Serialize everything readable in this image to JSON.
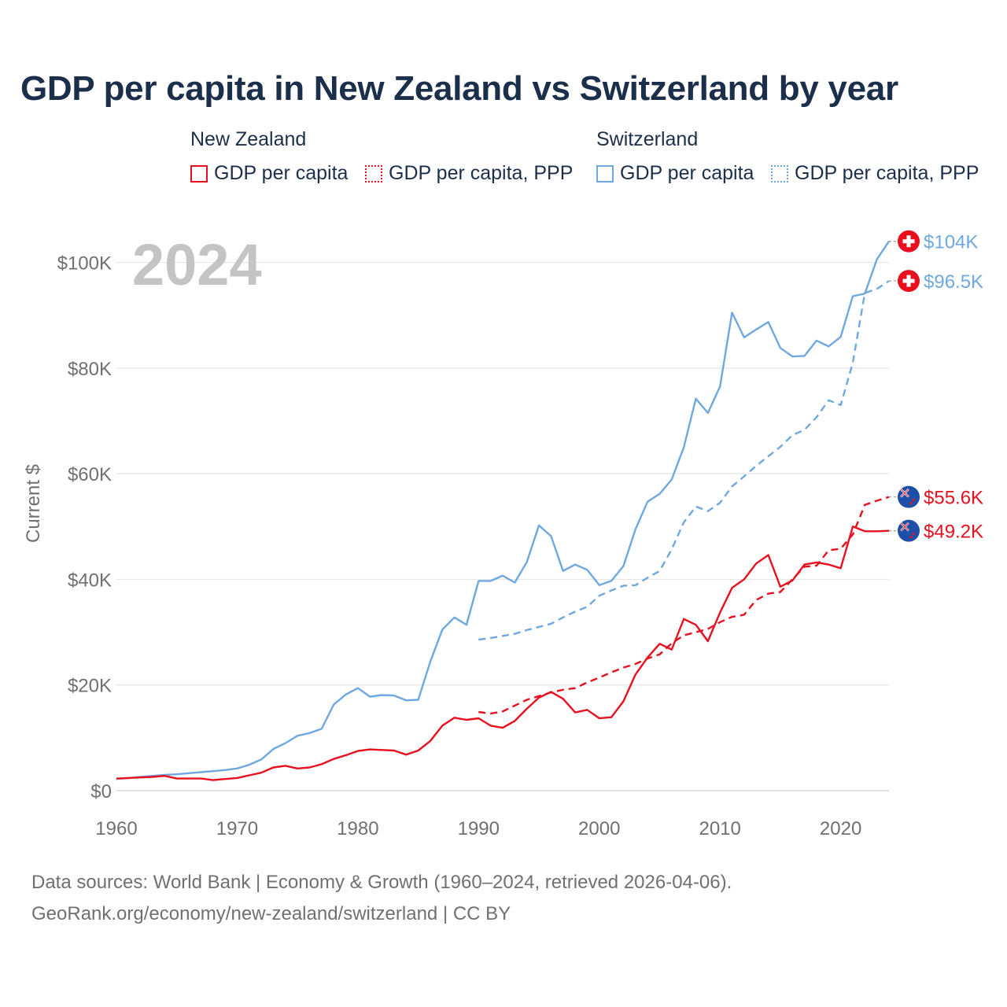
{
  "title": "GDP per capita in New Zealand vs Switzerland by year",
  "legend": {
    "groups": [
      {
        "name": "New Zealand",
        "color": "#e8101e",
        "items": [
          "GDP per capita",
          "GDP per capita, PPP"
        ]
      },
      {
        "name": "Switzerland",
        "color": "#6fa8e0",
        "items": [
          "GDP per capita",
          "GDP per capita, PPP"
        ]
      }
    ]
  },
  "year_watermark": "2024",
  "footer": {
    "line1": "Data sources: World Bank | Economy & Growth (1960–2024, retrieved 2026-04-06).",
    "line2": "GeoRank.org/economy/new-zealand/switzerland | CC BY"
  },
  "chart_data": {
    "type": "line",
    "title": "GDP per capita in New Zealand vs Switzerland by year",
    "xlabel": "",
    "ylabel": "Current $",
    "xlim": [
      1960,
      2024
    ],
    "ylim": [
      0,
      105000
    ],
    "x_ticks": [
      1960,
      1970,
      1980,
      1990,
      2000,
      2010,
      2020
    ],
    "y_ticks": [
      0,
      20000,
      40000,
      60000,
      80000,
      100000
    ],
    "y_tick_labels": [
      "$0",
      "$20K",
      "$40K",
      "$60K",
      "$80K",
      "$100K"
    ],
    "grid": true,
    "series": [
      {
        "name": "Switzerland GDP per capita",
        "color": "#6fa8e0",
        "dash": false,
        "end_label": "$104K",
        "x": [
          1960,
          1961,
          1962,
          1963,
          1964,
          1965,
          1966,
          1967,
          1968,
          1969,
          1970,
          1971,
          1972,
          1973,
          1974,
          1975,
          1976,
          1977,
          1978,
          1979,
          1980,
          1981,
          1982,
          1983,
          1984,
          1985,
          1986,
          1987,
          1988,
          1989,
          1990,
          1991,
          1992,
          1993,
          1994,
          1995,
          1996,
          1997,
          1998,
          1999,
          2000,
          2001,
          2002,
          2003,
          2004,
          2005,
          2006,
          2007,
          2008,
          2009,
          2010,
          2011,
          2012,
          2013,
          2014,
          2015,
          2016,
          2017,
          2018,
          2019,
          2020,
          2021,
          2022,
          2023,
          2024
        ],
        "values": [
          2200,
          2400,
          2600,
          2800,
          3000,
          3100,
          3300,
          3500,
          3700,
          3900,
          4200,
          4900,
          5900,
          7900,
          9000,
          10400,
          10900,
          11700,
          16300,
          18200,
          19400,
          17800,
          18100,
          18000,
          17100,
          17200,
          24400,
          30500,
          32800,
          31400,
          39700,
          39700,
          40700,
          39400,
          43300,
          50200,
          48200,
          41600,
          42800,
          41800,
          38900,
          39700,
          42500,
          49500,
          54700,
          56200,
          58900,
          65000,
          74200,
          71500,
          76500,
          90500,
          85800,
          87300,
          88700,
          83800,
          82200,
          82300,
          85200,
          84100,
          85900,
          93600,
          94100,
          100600,
          104000
        ]
      },
      {
        "name": "Switzerland GDP per capita, PPP",
        "color": "#6fa8e0",
        "dash": true,
        "end_label": "$96.5K",
        "x": [
          1990,
          1991,
          1992,
          1993,
          1994,
          1995,
          1996,
          1997,
          1998,
          1999,
          2000,
          2001,
          2002,
          2003,
          2004,
          2005,
          2006,
          2007,
          2008,
          2009,
          2010,
          2011,
          2012,
          2013,
          2014,
          2015,
          2016,
          2017,
          2018,
          2019,
          2020,
          2021,
          2022,
          2023,
          2024
        ],
        "values": [
          28600,
          28900,
          29300,
          29700,
          30400,
          31000,
          31600,
          32800,
          33900,
          34800,
          36900,
          37900,
          38800,
          38900,
          40300,
          41600,
          45700,
          50800,
          53800,
          52900,
          54500,
          57600,
          59500,
          61500,
          63300,
          65100,
          67300,
          68300,
          70700,
          73900,
          73000,
          81000,
          94200,
          95000,
          96500
        ]
      },
      {
        "name": "New Zealand GDP per capita",
        "color": "#e8101e",
        "dash": false,
        "end_label": "$49.2K",
        "x": [
          1960,
          1961,
          1962,
          1963,
          1964,
          1965,
          1966,
          1967,
          1968,
          1969,
          1970,
          1971,
          1972,
          1973,
          1974,
          1975,
          1976,
          1977,
          1978,
          1979,
          1980,
          1981,
          1982,
          1983,
          1984,
          1985,
          1986,
          1987,
          1988,
          1989,
          1990,
          1991,
          1992,
          1993,
          1994,
          1995,
          1996,
          1997,
          1998,
          1999,
          2000,
          2001,
          2002,
          2003,
          2004,
          2005,
          2006,
          2007,
          2008,
          2009,
          2010,
          2011,
          2012,
          2013,
          2014,
          2015,
          2016,
          2017,
          2018,
          2019,
          2020,
          2021,
          2022,
          2023,
          2024
        ],
        "values": [
          2300,
          2400,
          2500,
          2600,
          2800,
          2300,
          2300,
          2300,
          2000,
          2200,
          2400,
          2900,
          3400,
          4400,
          4700,
          4200,
          4400,
          5000,
          6000,
          6700,
          7500,
          7800,
          7700,
          7600,
          6800,
          7600,
          9400,
          12300,
          13800,
          13400,
          13700,
          12300,
          11900,
          13200,
          15500,
          17600,
          18700,
          17400,
          14800,
          15300,
          13700,
          13900,
          16900,
          22000,
          25200,
          27800,
          26700,
          32500,
          31400,
          28300,
          33700,
          38400,
          40000,
          43000,
          44600,
          38600,
          39800,
          42800,
          43200,
          42800,
          42100,
          50000,
          49100,
          49100,
          49200
        ]
      },
      {
        "name": "New Zealand GDP per capita, PPP",
        "color": "#e8101e",
        "dash": true,
        "end_label": "$55.6K",
        "x": [
          1990,
          1991,
          1992,
          1993,
          1994,
          1995,
          1996,
          1997,
          1998,
          1999,
          2000,
          2001,
          2002,
          2003,
          2004,
          2005,
          2006,
          2007,
          2008,
          2009,
          2010,
          2011,
          2012,
          2013,
          2014,
          2015,
          2016,
          2017,
          2018,
          2019,
          2020,
          2021,
          2022,
          2023,
          2024
        ],
        "values": [
          14900,
          14600,
          15000,
          16100,
          17200,
          17900,
          18600,
          19100,
          19400,
          20500,
          21400,
          22400,
          23300,
          24000,
          25000,
          25800,
          27900,
          29400,
          30000,
          30600,
          31900,
          32900,
          33300,
          36100,
          37300,
          37600,
          40000,
          42400,
          42600,
          45500,
          45800,
          48500,
          54100,
          54900,
          55600
        ]
      }
    ]
  }
}
